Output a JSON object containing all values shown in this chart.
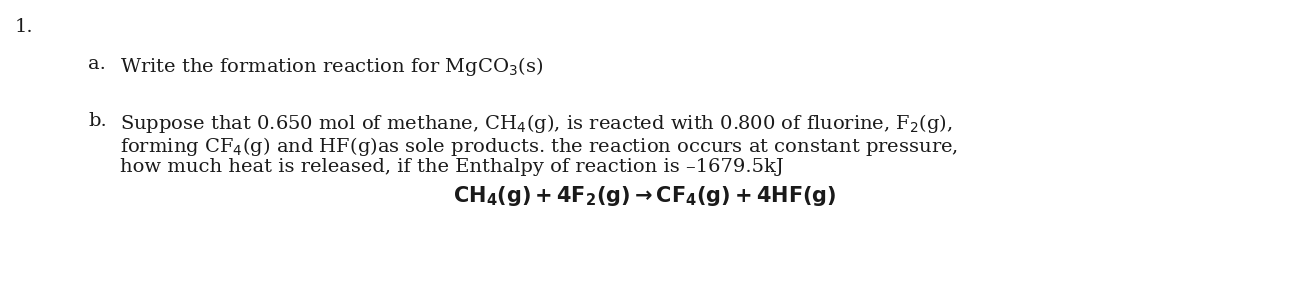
{
  "background_color": "#ffffff",
  "number_label": "1.",
  "number_fontsize": 14,
  "part_a_label": "a.",
  "part_a_fontsize": 14,
  "part_b_label": "b.",
  "part_b_fontsize": 14,
  "text_color": "#1a1a1a",
  "line1_a": "Write the formation reaction for MgCO$_3$(s)",
  "line1_b": "Suppose that 0.650 mol of methane, CH$_4$(g), is reacted with 0.800 of fluorine, F$_2$(g),",
  "line2_b": "forming CF$_4$(g) and HF(g)as sole products. the reaction occurs at constant pressure,",
  "line3_b": "how much heat is released, if the Enthalpy of reaction is –1679.5kJ",
  "equation": "$\\mathbf{CH_4(g) + 4F_2(g) \\rightarrow CF_4(g) + 4HF(g)}$"
}
